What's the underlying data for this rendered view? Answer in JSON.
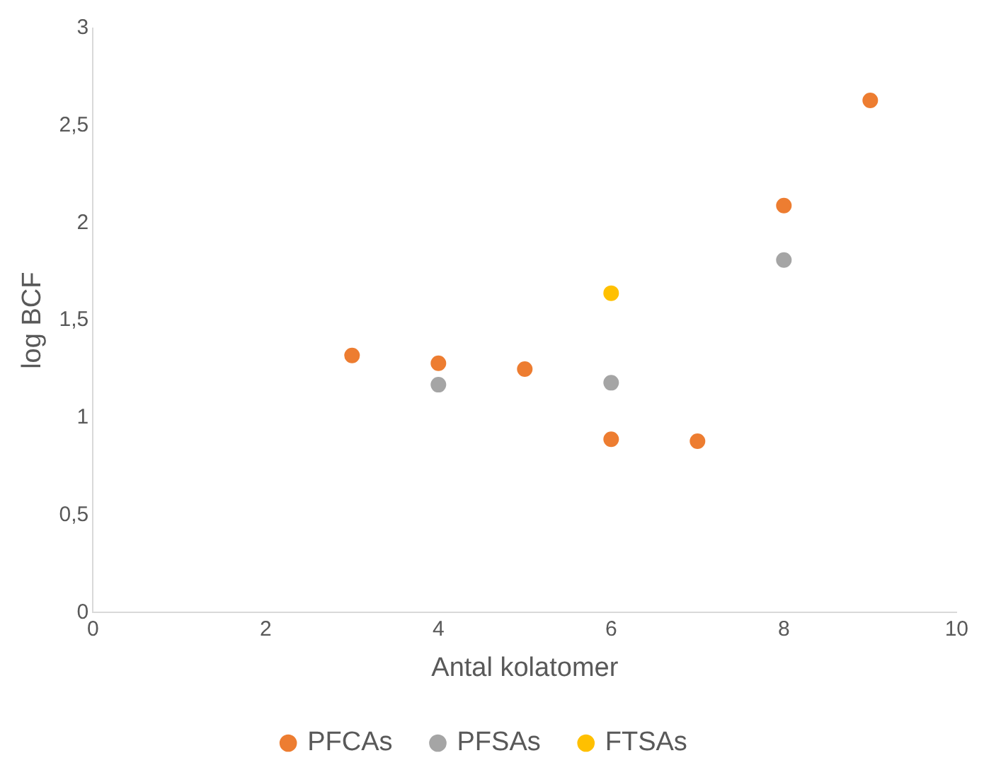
{
  "chart_data": {
    "type": "scatter",
    "xlabel": "Antal kolatomer",
    "ylabel": "log BCF",
    "xlim": [
      0,
      10
    ],
    "xticks": [
      0,
      2,
      4,
      6,
      8,
      10
    ],
    "ylim": [
      0,
      3
    ],
    "yticks": [
      0,
      {
        "value": 0.5,
        "label": "0,5"
      },
      1,
      {
        "value": 1.5,
        "label": "1,5"
      },
      2,
      {
        "value": 2.5,
        "label": "2,5"
      },
      3
    ],
    "grid": false,
    "legend": "bottom",
    "marker": "circle",
    "series": [
      {
        "name": "PFCAs",
        "color": "#ed7d31",
        "x": [
          3,
          4,
          5,
          6,
          7,
          8,
          9
        ],
        "values": [
          1.32,
          1.28,
          1.25,
          0.89,
          0.88,
          2.09,
          2.63
        ]
      },
      {
        "name": "PFSAs",
        "color": "#a5a5a5",
        "x": [
          4,
          6,
          8
        ],
        "values": [
          1.17,
          1.18,
          1.81
        ]
      },
      {
        "name": "FTSAs",
        "color": "#ffc000",
        "x": [
          6
        ],
        "values": [
          1.64
        ]
      }
    ]
  }
}
